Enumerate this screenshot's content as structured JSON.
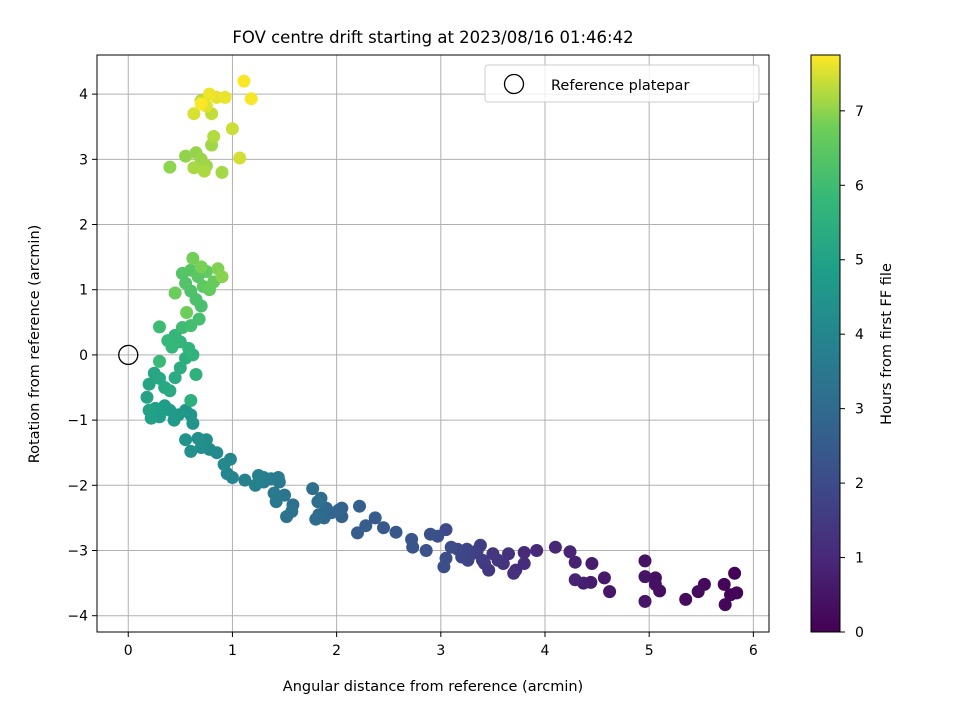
{
  "chart_data": {
    "type": "scatter",
    "title": "FOV centre drift starting at 2023/08/16 01:46:42",
    "xlabel": "Angular distance from reference (arcmin)",
    "ylabel": "Rotation from reference (arcmin)",
    "xlim": [
      -0.3,
      6.15
    ],
    "ylim": [
      -4.25,
      4.6
    ],
    "xticks": [
      0,
      1,
      2,
      3,
      4,
      5,
      6
    ],
    "yticks": [
      -4,
      -3,
      -2,
      -1,
      0,
      1,
      2,
      3,
      4
    ],
    "grid": true,
    "colormap": "viridis",
    "colorbar": {
      "label": "Hours from first FF file",
      "min": 0,
      "max": 7.75,
      "ticks": [
        0,
        1,
        2,
        3,
        4,
        5,
        6,
        7
      ]
    },
    "legend": {
      "position": "top-right",
      "entries": [
        {
          "label": "Reference platepar",
          "marker": "open-circle",
          "x": 0,
          "y": 0
        }
      ]
    },
    "points": [
      [
        5.82,
        -3.35,
        0.05
      ],
      [
        5.84,
        -3.65,
        0.08
      ],
      [
        5.78,
        -3.68,
        0.1
      ],
      [
        5.72,
        -3.52,
        0.13
      ],
      [
        5.73,
        -3.83,
        0.16
      ],
      [
        5.53,
        -3.52,
        0.2
      ],
      [
        5.47,
        -3.63,
        0.24
      ],
      [
        5.35,
        -3.75,
        0.28
      ],
      [
        5.1,
        -3.62,
        0.33
      ],
      [
        5.06,
        -3.42,
        0.37
      ],
      [
        5.06,
        -3.52,
        0.4
      ],
      [
        4.96,
        -3.16,
        0.44
      ],
      [
        4.96,
        -3.4,
        0.47
      ],
      [
        4.96,
        -3.78,
        0.5
      ],
      [
        4.62,
        -3.63,
        0.55
      ],
      [
        4.57,
        -3.42,
        0.6
      ],
      [
        4.44,
        -3.49,
        0.65
      ],
      [
        4.45,
        -3.2,
        0.7
      ],
      [
        4.37,
        -3.5,
        0.75
      ],
      [
        4.29,
        -3.18,
        0.8
      ],
      [
        4.29,
        -3.45,
        0.85
      ],
      [
        4.24,
        -3.02,
        0.9
      ],
      [
        4.1,
        -2.95,
        0.95
      ],
      [
        3.92,
        -3.0,
        1.0
      ],
      [
        3.8,
        -3.03,
        1.05
      ],
      [
        3.8,
        -3.2,
        1.1
      ],
      [
        3.72,
        -3.3,
        1.15
      ],
      [
        3.7,
        -3.35,
        1.2
      ],
      [
        3.65,
        -3.05,
        1.25
      ],
      [
        3.6,
        -3.2,
        1.3
      ],
      [
        3.55,
        -3.15,
        1.35
      ],
      [
        3.5,
        -3.05,
        1.4
      ],
      [
        3.46,
        -3.3,
        1.45
      ],
      [
        3.42,
        -3.2,
        1.5
      ],
      [
        3.4,
        -3.15,
        1.55
      ],
      [
        3.38,
        -2.92,
        1.6
      ],
      [
        3.35,
        -3.0,
        1.65
      ],
      [
        3.3,
        -3.05,
        1.7
      ],
      [
        3.26,
        -3.15,
        1.75
      ],
      [
        3.25,
        -2.98,
        1.8
      ],
      [
        3.2,
        -3.1,
        1.85
      ],
      [
        3.16,
        -2.98,
        1.9
      ],
      [
        3.05,
        -2.68,
        1.95
      ],
      [
        3.1,
        -2.95,
        2.0
      ],
      [
        3.05,
        -3.12,
        2.05
      ],
      [
        3.03,
        -3.25,
        2.1
      ],
      [
        2.97,
        -2.78,
        2.15
      ],
      [
        2.9,
        -2.75,
        2.2
      ],
      [
        2.86,
        -3.0,
        2.25
      ],
      [
        2.73,
        -2.95,
        2.3
      ],
      [
        2.72,
        -2.83,
        2.35
      ],
      [
        2.57,
        -2.72,
        2.4
      ],
      [
        2.45,
        -2.65,
        2.45
      ],
      [
        2.37,
        -2.5,
        2.5
      ],
      [
        2.28,
        -2.62,
        2.55
      ],
      [
        2.2,
        -2.73,
        2.6
      ],
      [
        2.22,
        -2.32,
        2.65
      ],
      [
        2.05,
        -2.35,
        2.7
      ],
      [
        2.05,
        -2.48,
        2.75
      ],
      [
        2.02,
        -2.38,
        2.8
      ],
      [
        1.95,
        -2.42,
        2.85
      ],
      [
        1.9,
        -2.35,
        2.9
      ],
      [
        1.88,
        -2.5,
        2.95
      ],
      [
        1.83,
        -2.45,
        3.0
      ],
      [
        1.8,
        -2.52,
        3.05
      ],
      [
        1.85,
        -2.2,
        3.1
      ],
      [
        1.77,
        -2.05,
        3.15
      ],
      [
        1.82,
        -2.25,
        3.2
      ],
      [
        1.58,
        -2.3,
        3.25
      ],
      [
        1.57,
        -2.4,
        3.3
      ],
      [
        1.52,
        -2.48,
        3.35
      ],
      [
        1.5,
        -2.15,
        3.4
      ],
      [
        1.45,
        -1.95,
        3.45
      ],
      [
        1.42,
        -2.25,
        3.5
      ],
      [
        1.4,
        -2.12,
        3.55
      ],
      [
        1.44,
        -1.88,
        3.6
      ],
      [
        1.37,
        -1.9,
        3.65
      ],
      [
        1.3,
        -1.95,
        3.7
      ],
      [
        1.3,
        -1.88,
        3.75
      ],
      [
        1.25,
        -1.85,
        3.8
      ],
      [
        1.22,
        -2.0,
        3.85
      ],
      [
        1.12,
        -1.92,
        3.9
      ],
      [
        1.0,
        -1.88,
        3.95
      ],
      [
        0.95,
        -1.82,
        4.0
      ],
      [
        0.98,
        -1.6,
        4.05
      ],
      [
        0.92,
        -1.68,
        4.1
      ],
      [
        0.85,
        -1.5,
        4.15
      ],
      [
        0.78,
        -1.45,
        4.2
      ],
      [
        0.75,
        -1.3,
        4.25
      ],
      [
        0.7,
        -1.42,
        4.3
      ],
      [
        0.67,
        -1.28,
        4.35
      ],
      [
        0.6,
        -1.48,
        4.4
      ],
      [
        0.55,
        -1.3,
        4.45
      ],
      [
        0.62,
        -1.05,
        4.5
      ],
      [
        0.6,
        -0.92,
        4.55
      ],
      [
        0.55,
        -0.85,
        4.6
      ],
      [
        0.48,
        -0.92,
        4.65
      ],
      [
        0.44,
        -1.0,
        4.7
      ],
      [
        0.4,
        -0.85,
        4.75
      ],
      [
        0.35,
        -0.78,
        4.8
      ],
      [
        0.3,
        -0.95,
        4.85
      ],
      [
        0.26,
        -0.82,
        4.9
      ],
      [
        0.22,
        -0.97,
        4.95
      ],
      [
        0.2,
        -0.85,
        5.0
      ],
      [
        0.18,
        -0.65,
        5.05
      ],
      [
        0.2,
        -0.45,
        5.1
      ],
      [
        0.25,
        -0.28,
        5.15
      ],
      [
        0.3,
        -0.36,
        5.2
      ],
      [
        0.35,
        -0.5,
        5.25
      ],
      [
        0.4,
        -0.55,
        5.3
      ],
      [
        0.45,
        -0.35,
        5.35
      ],
      [
        0.5,
        -0.2,
        5.4
      ],
      [
        0.55,
        -0.05,
        5.45
      ],
      [
        0.6,
        -0.7,
        5.5
      ],
      [
        0.65,
        -0.3,
        5.55
      ],
      [
        0.62,
        0.0,
        5.6
      ],
      [
        0.58,
        0.1,
        5.65
      ],
      [
        0.5,
        0.2,
        5.7
      ],
      [
        0.45,
        0.3,
        5.75
      ],
      [
        0.42,
        0.12,
        5.8
      ],
      [
        0.38,
        0.22,
        5.85
      ],
      [
        0.3,
        -0.1,
        5.9
      ],
      [
        0.3,
        0.43,
        5.95
      ],
      [
        0.52,
        0.42,
        6.0
      ],
      [
        0.6,
        0.45,
        6.05
      ],
      [
        0.68,
        0.55,
        6.1
      ],
      [
        0.7,
        0.75,
        6.15
      ],
      [
        0.65,
        0.85,
        6.2
      ],
      [
        0.6,
        0.98,
        6.25
      ],
      [
        0.55,
        1.1,
        6.3
      ],
      [
        0.52,
        1.25,
        6.35
      ],
      [
        0.6,
        1.3,
        6.4
      ],
      [
        0.67,
        1.2,
        6.45
      ],
      [
        0.72,
        1.05,
        6.5
      ],
      [
        0.75,
        1.28,
        6.55
      ],
      [
        0.78,
        1.0,
        6.6
      ],
      [
        0.82,
        1.12,
        6.65
      ],
      [
        0.45,
        0.95,
        6.7
      ],
      [
        0.56,
        0.65,
        6.75
      ],
      [
        0.62,
        1.48,
        6.8
      ],
      [
        0.7,
        1.35,
        6.85
      ],
      [
        0.86,
        1.32,
        6.9
      ],
      [
        0.9,
        1.2,
        6.95
      ],
      [
        0.4,
        2.88,
        7.0
      ],
      [
        0.55,
        3.05,
        7.02
      ],
      [
        0.65,
        3.1,
        7.05
      ],
      [
        0.7,
        3.0,
        7.08
      ],
      [
        0.75,
        2.9,
        7.1
      ],
      [
        0.8,
        3.22,
        7.12
      ],
      [
        0.9,
        2.8,
        7.15
      ],
      [
        0.63,
        2.87,
        7.18
      ],
      [
        0.73,
        2.82,
        7.2
      ],
      [
        0.82,
        3.35,
        7.25
      ],
      [
        0.7,
        3.9,
        7.3
      ],
      [
        0.8,
        3.7,
        7.35
      ],
      [
        1.0,
        3.47,
        7.4
      ],
      [
        1.07,
        3.02,
        7.45
      ],
      [
        0.63,
        3.7,
        7.5
      ],
      [
        0.75,
        3.82,
        7.55
      ],
      [
        0.85,
        3.95,
        7.6
      ],
      [
        0.93,
        3.95,
        7.62
      ],
      [
        0.78,
        4.0,
        7.65
      ],
      [
        1.18,
        3.93,
        7.7
      ],
      [
        1.11,
        4.2,
        7.72
      ],
      [
        0.7,
        3.85,
        7.74
      ]
    ]
  }
}
